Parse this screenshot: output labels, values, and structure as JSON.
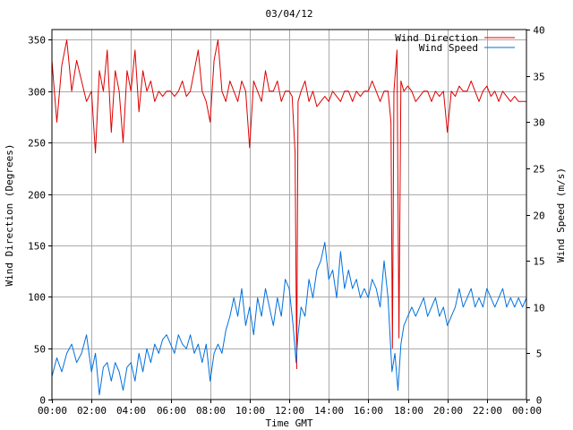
{
  "chart_data": {
    "type": "line",
    "title": "03/04/12",
    "xlabel": "Time GMT",
    "ylabel_left": "Wind Direction (Degrees)",
    "ylabel_right": "Wind Speed (m/s)",
    "x_range_hours": [
      0,
      24
    ],
    "x_ticks": [
      "00:00",
      "02:00",
      "04:00",
      "06:00",
      "08:00",
      "10:00",
      "12:00",
      "14:00",
      "16:00",
      "18:00",
      "20:00",
      "22:00",
      "00:00"
    ],
    "ylim_left": [
      0,
      360
    ],
    "y_ticks_left": [
      0,
      50,
      100,
      150,
      200,
      250,
      300,
      350
    ],
    "ylim_right": [
      0,
      40
    ],
    "y_ticks_right": [
      0,
      5,
      10,
      15,
      20,
      25,
      30,
      35,
      40
    ],
    "grid": true,
    "legend_position": "top-right",
    "series": [
      {
        "name": "Wind Direction",
        "axis": "left",
        "color": "#dd0000",
        "points": [
          [
            0,
            330
          ],
          [
            0.25,
            270
          ],
          [
            0.5,
            325
          ],
          [
            0.75,
            350
          ],
          [
            1,
            300
          ],
          [
            1.25,
            330
          ],
          [
            1.5,
            310
          ],
          [
            1.75,
            290
          ],
          [
            2,
            300
          ],
          [
            2.2,
            240
          ],
          [
            2.4,
            320
          ],
          [
            2.6,
            300
          ],
          [
            2.8,
            340
          ],
          [
            3,
            260
          ],
          [
            3.2,
            320
          ],
          [
            3.4,
            300
          ],
          [
            3.6,
            250
          ],
          [
            3.8,
            320
          ],
          [
            4,
            300
          ],
          [
            4.2,
            340
          ],
          [
            4.4,
            280
          ],
          [
            4.6,
            320
          ],
          [
            4.8,
            300
          ],
          [
            5,
            310
          ],
          [
            5.2,
            290
          ],
          [
            5.4,
            300
          ],
          [
            5.6,
            295
          ],
          [
            5.8,
            300
          ],
          [
            6,
            300
          ],
          [
            6.2,
            295
          ],
          [
            6.4,
            300
          ],
          [
            6.6,
            310
          ],
          [
            6.8,
            295
          ],
          [
            7,
            300
          ],
          [
            7.2,
            320
          ],
          [
            7.4,
            340
          ],
          [
            7.6,
            300
          ],
          [
            7.8,
            290
          ],
          [
            8,
            270
          ],
          [
            8.2,
            330
          ],
          [
            8.4,
            350
          ],
          [
            8.6,
            300
          ],
          [
            8.8,
            290
          ],
          [
            9,
            310
          ],
          [
            9.2,
            300
          ],
          [
            9.4,
            290
          ],
          [
            9.6,
            310
          ],
          [
            9.8,
            300
          ],
          [
            10,
            245
          ],
          [
            10.2,
            310
          ],
          [
            10.4,
            300
          ],
          [
            10.6,
            290
          ],
          [
            10.8,
            320
          ],
          [
            11,
            300
          ],
          [
            11.2,
            300
          ],
          [
            11.4,
            310
          ],
          [
            11.6,
            290
          ],
          [
            11.8,
            300
          ],
          [
            12,
            300
          ],
          [
            12.15,
            295
          ],
          [
            12.3,
            240
          ],
          [
            12.38,
            30
          ],
          [
            12.45,
            290
          ],
          [
            12.6,
            300
          ],
          [
            12.8,
            310
          ],
          [
            13,
            290
          ],
          [
            13.2,
            300
          ],
          [
            13.4,
            285
          ],
          [
            13.6,
            290
          ],
          [
            13.8,
            295
          ],
          [
            14,
            290
          ],
          [
            14.2,
            300
          ],
          [
            14.4,
            295
          ],
          [
            14.6,
            290
          ],
          [
            14.8,
            300
          ],
          [
            15,
            300
          ],
          [
            15.2,
            290
          ],
          [
            15.4,
            300
          ],
          [
            15.6,
            295
          ],
          [
            15.8,
            300
          ],
          [
            16,
            300
          ],
          [
            16.2,
            310
          ],
          [
            16.4,
            300
          ],
          [
            16.6,
            290
          ],
          [
            16.8,
            300
          ],
          [
            17,
            300
          ],
          [
            17.15,
            270
          ],
          [
            17.22,
            50
          ],
          [
            17.3,
            300
          ],
          [
            17.45,
            340
          ],
          [
            17.55,
            60
          ],
          [
            17.65,
            310
          ],
          [
            17.8,
            300
          ],
          [
            18,
            305
          ],
          [
            18.2,
            300
          ],
          [
            18.4,
            290
          ],
          [
            18.6,
            295
          ],
          [
            18.8,
            300
          ],
          [
            19,
            300
          ],
          [
            19.2,
            290
          ],
          [
            19.4,
            300
          ],
          [
            19.6,
            295
          ],
          [
            19.8,
            300
          ],
          [
            20,
            260
          ],
          [
            20.2,
            300
          ],
          [
            20.4,
            295
          ],
          [
            20.6,
            305
          ],
          [
            20.8,
            300
          ],
          [
            21,
            300
          ],
          [
            21.2,
            310
          ],
          [
            21.4,
            300
          ],
          [
            21.6,
            290
          ],
          [
            21.8,
            300
          ],
          [
            22,
            305
          ],
          [
            22.2,
            295
          ],
          [
            22.4,
            300
          ],
          [
            22.6,
            290
          ],
          [
            22.8,
            300
          ],
          [
            23,
            295
          ],
          [
            23.2,
            290
          ],
          [
            23.4,
            295
          ],
          [
            23.6,
            290
          ],
          [
            23.8,
            290
          ],
          [
            24,
            290
          ]
        ]
      },
      {
        "name": "Wind Speed",
        "axis": "right",
        "color": "#0070dd",
        "points": [
          [
            0,
            2.5
          ],
          [
            0.25,
            4.5
          ],
          [
            0.5,
            3
          ],
          [
            0.75,
            5
          ],
          [
            1,
            6
          ],
          [
            1.25,
            4
          ],
          [
            1.5,
            5
          ],
          [
            1.75,
            7
          ],
          [
            2,
            3
          ],
          [
            2.2,
            5
          ],
          [
            2.4,
            0.5
          ],
          [
            2.6,
            3.5
          ],
          [
            2.8,
            4
          ],
          [
            3,
            2
          ],
          [
            3.2,
            4
          ],
          [
            3.4,
            3
          ],
          [
            3.6,
            1
          ],
          [
            3.8,
            3.5
          ],
          [
            4,
            4
          ],
          [
            4.2,
            2
          ],
          [
            4.4,
            5
          ],
          [
            4.6,
            3
          ],
          [
            4.8,
            5.5
          ],
          [
            5,
            4
          ],
          [
            5.2,
            6
          ],
          [
            5.4,
            5
          ],
          [
            5.6,
            6.5
          ],
          [
            5.8,
            7
          ],
          [
            6,
            6
          ],
          [
            6.2,
            5
          ],
          [
            6.4,
            7
          ],
          [
            6.6,
            6
          ],
          [
            6.8,
            5.5
          ],
          [
            7,
            7
          ],
          [
            7.2,
            5
          ],
          [
            7.4,
            6
          ],
          [
            7.6,
            4
          ],
          [
            7.8,
            6
          ],
          [
            8,
            2
          ],
          [
            8.2,
            5
          ],
          [
            8.4,
            6
          ],
          [
            8.6,
            5
          ],
          [
            8.8,
            7.5
          ],
          [
            9,
            9
          ],
          [
            9.2,
            11
          ],
          [
            9.4,
            9
          ],
          [
            9.6,
            12
          ],
          [
            9.8,
            8
          ],
          [
            10,
            10
          ],
          [
            10.2,
            7
          ],
          [
            10.4,
            11
          ],
          [
            10.6,
            9
          ],
          [
            10.8,
            12
          ],
          [
            11,
            10
          ],
          [
            11.2,
            8
          ],
          [
            11.4,
            11
          ],
          [
            11.6,
            9
          ],
          [
            11.8,
            13
          ],
          [
            12,
            12
          ],
          [
            12.2,
            8
          ],
          [
            12.35,
            4
          ],
          [
            12.45,
            7
          ],
          [
            12.6,
            10
          ],
          [
            12.8,
            9
          ],
          [
            13,
            13
          ],
          [
            13.2,
            11
          ],
          [
            13.4,
            14
          ],
          [
            13.6,
            15
          ],
          [
            13.8,
            17
          ],
          [
            14,
            13
          ],
          [
            14.2,
            14
          ],
          [
            14.4,
            11
          ],
          [
            14.6,
            16
          ],
          [
            14.8,
            12
          ],
          [
            15,
            14
          ],
          [
            15.2,
            12
          ],
          [
            15.4,
            13
          ],
          [
            15.6,
            11
          ],
          [
            15.8,
            12
          ],
          [
            16,
            11
          ],
          [
            16.2,
            13
          ],
          [
            16.4,
            12
          ],
          [
            16.6,
            10
          ],
          [
            16.8,
            15
          ],
          [
            17,
            11
          ],
          [
            17.2,
            3
          ],
          [
            17.35,
            5
          ],
          [
            17.5,
            1
          ],
          [
            17.65,
            6
          ],
          [
            17.8,
            8
          ],
          [
            18,
            9
          ],
          [
            18.2,
            10
          ],
          [
            18.4,
            9
          ],
          [
            18.6,
            10
          ],
          [
            18.8,
            11
          ],
          [
            19,
            9
          ],
          [
            19.2,
            10
          ],
          [
            19.4,
            11
          ],
          [
            19.6,
            9
          ],
          [
            19.8,
            10
          ],
          [
            20,
            8
          ],
          [
            20.2,
            9
          ],
          [
            20.4,
            10
          ],
          [
            20.6,
            12
          ],
          [
            20.8,
            10
          ],
          [
            21,
            11
          ],
          [
            21.2,
            12
          ],
          [
            21.4,
            10
          ],
          [
            21.6,
            11
          ],
          [
            21.8,
            10
          ],
          [
            22,
            12
          ],
          [
            22.2,
            11
          ],
          [
            22.4,
            10
          ],
          [
            22.6,
            11
          ],
          [
            22.8,
            12
          ],
          [
            23,
            10
          ],
          [
            23.2,
            11
          ],
          [
            23.4,
            10
          ],
          [
            23.6,
            11
          ],
          [
            23.8,
            10
          ],
          [
            24,
            11
          ]
        ]
      }
    ]
  }
}
